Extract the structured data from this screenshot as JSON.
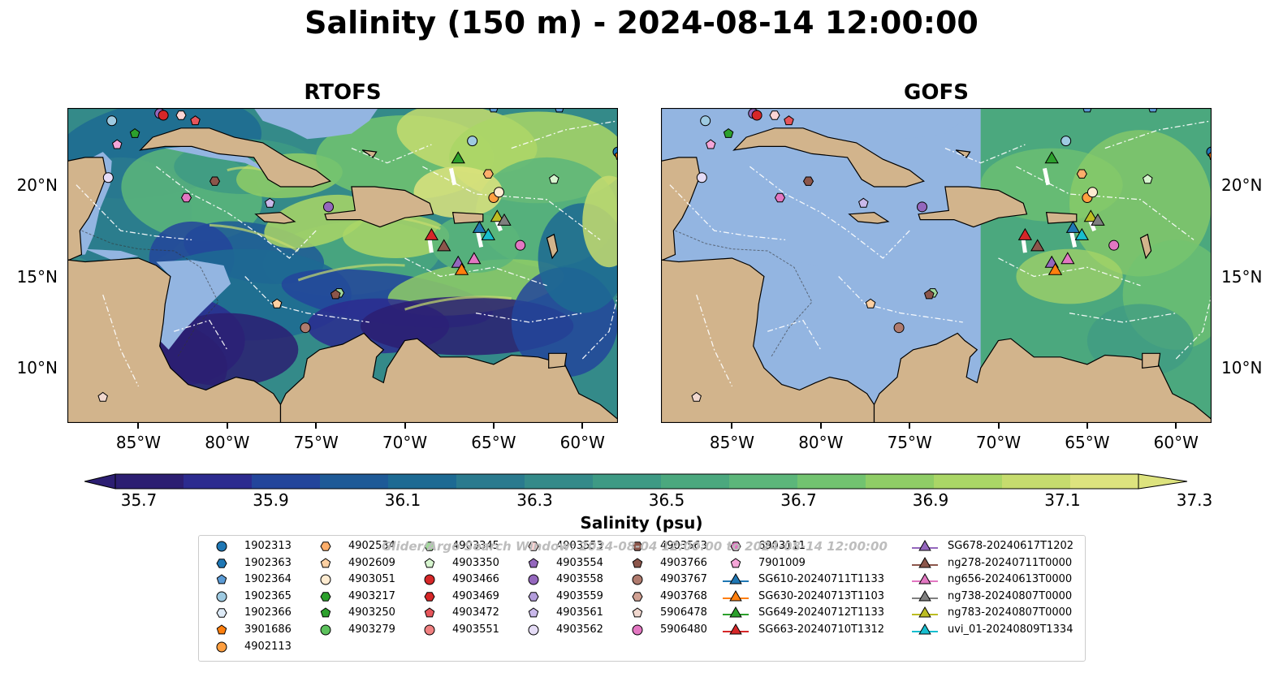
{
  "title": "Salinity (150 m) - 2024-08-14 12:00:00",
  "panels": [
    {
      "title": "RTOFS",
      "y_tick_side": "left"
    },
    {
      "title": "GOFS",
      "y_tick_side": "right"
    }
  ],
  "x_ticks": [
    "85°W",
    "80°W",
    "75°W",
    "70°W",
    "65°W",
    "60°W"
  ],
  "x_tick_values": [
    -85,
    -80,
    -75,
    -70,
    -65,
    -60
  ],
  "y_ticks": [
    "20°N",
    "15°N",
    "10°N"
  ],
  "y_tick_values": [
    20,
    15,
    10
  ],
  "extent": {
    "lon": [
      -89,
      -58
    ],
    "lat": [
      7,
      24.2
    ]
  },
  "colorbar": {
    "label": "Salinity (psu)",
    "ticks": [
      "35.7",
      "35.9",
      "36.1",
      "36.3",
      "36.5",
      "36.7",
      "36.9",
      "37.1",
      "37.3"
    ],
    "min": 35.7,
    "max": 37.3,
    "colors": [
      "#2c1e72",
      "#2c2b8f",
      "#23459b",
      "#1e5a97",
      "#1d6a93",
      "#2a7a8e",
      "#348a89",
      "#3e9a84",
      "#4ba87e",
      "#5cb67a",
      "#72c370",
      "#8fcd66",
      "#aad666",
      "#c6dc6e",
      "#dde37e"
    ]
  },
  "colors": {
    "land": "#d2b48c",
    "shelf": "#93b5e1",
    "watermark": "#bdbdbd"
  },
  "watermark": "Glider/Argo Search Window: 2024-08-04 12:00:00 to 2024-08-14 12:00:00",
  "legend": [
    {
      "label": "1902313",
      "marker": "circle",
      "color": "#1f77b4"
    },
    {
      "label": "1902363",
      "marker": "hexagon",
      "color": "#1f77b4"
    },
    {
      "label": "1902364",
      "marker": "pentagon",
      "color": "#5b9bd5"
    },
    {
      "label": "1902365",
      "marker": "circle",
      "color": "#9ecae1"
    },
    {
      "label": "1902366",
      "marker": "hexagon",
      "color": "#deebf7"
    },
    {
      "label": "3901686",
      "marker": "pentagon",
      "color": "#ff7f0e"
    },
    {
      "label": "4902113",
      "marker": "circle",
      "color": "#ff9f40"
    },
    {
      "label": "4902534",
      "marker": "hexagon",
      "color": "#fdae6b"
    },
    {
      "label": "4902609",
      "marker": "pentagon",
      "color": "#fdd0a2"
    },
    {
      "label": "4903051",
      "marker": "circle",
      "color": "#feebd0"
    },
    {
      "label": "4903217",
      "marker": "hexagon",
      "color": "#2ca02c"
    },
    {
      "label": "4903250",
      "marker": "pentagon",
      "color": "#2ca02c"
    },
    {
      "label": "4903279",
      "marker": "circle",
      "color": "#5cc15c"
    },
    {
      "label": "4903345",
      "marker": "hexagon",
      "color": "#a1d99b"
    },
    {
      "label": "4903350",
      "marker": "pentagon",
      "color": "#d7f5cf"
    },
    {
      "label": "4903466",
      "marker": "circle",
      "color": "#d62728"
    },
    {
      "label": "4903469",
      "marker": "hexagon",
      "color": "#d62728"
    },
    {
      "label": "4903472",
      "marker": "pentagon",
      "color": "#e6555a"
    },
    {
      "label": "4903551",
      "marker": "circle",
      "color": "#f08080"
    },
    {
      "label": "4903553",
      "marker": "hexagon",
      "color": "#fcd5d5"
    },
    {
      "label": "4903554",
      "marker": "pentagon",
      "color": "#9467bd"
    },
    {
      "label": "4903558",
      "marker": "circle",
      "color": "#9467bd"
    },
    {
      "label": "4903559",
      "marker": "hexagon",
      "color": "#b39ddb"
    },
    {
      "label": "4903561",
      "marker": "pentagon",
      "color": "#c9b8ea"
    },
    {
      "label": "4903562",
      "marker": "circle",
      "color": "#e5dcf6"
    },
    {
      "label": "4903563",
      "marker": "hexagon",
      "color": "#8c564b"
    },
    {
      "label": "4903766",
      "marker": "pentagon",
      "color": "#8c564b"
    },
    {
      "label": "4903767",
      "marker": "circle",
      "color": "#b07b6e"
    },
    {
      "label": "4903768",
      "marker": "hexagon",
      "color": "#d1a193"
    },
    {
      "label": "5906478",
      "marker": "pentagon",
      "color": "#f1d8cf"
    },
    {
      "label": "5906480",
      "marker": "circle",
      "color": "#e377c2"
    },
    {
      "label": "6903111",
      "marker": "hexagon",
      "color": "#e377c2"
    },
    {
      "label": "7901009",
      "marker": "pentagon",
      "color": "#f5a6d8"
    },
    {
      "label": "SG610-20240711T1133",
      "marker": "triangle",
      "color": "#1f77b4"
    },
    {
      "label": "SG630-20240713T1103",
      "marker": "triangle",
      "color": "#ff7f0e"
    },
    {
      "label": "SG649-20240712T1133",
      "marker": "triangle",
      "color": "#2ca02c"
    },
    {
      "label": "SG663-20240710T1312",
      "marker": "triangle",
      "color": "#d62728"
    },
    {
      "label": "SG678-20240617T1202",
      "marker": "triangle",
      "color": "#9467bd"
    },
    {
      "label": "ng278-20240711T0000",
      "marker": "triangle",
      "color": "#8c564b"
    },
    {
      "label": "ng656-20240613T0000",
      "marker": "triangle",
      "color": "#e377c2"
    },
    {
      "label": "ng738-20240807T0000",
      "marker": "triangle",
      "color": "#7f7f7f"
    },
    {
      "label": "ng783-20240807T0000",
      "marker": "triangle",
      "color": "#bcbd22"
    },
    {
      "label": "uvi_01-20240809T1334",
      "marker": "triangle",
      "color": "#17becf"
    }
  ],
  "floats": [
    {
      "lon": -86.5,
      "lat": 23.5,
      "id": "1902365"
    },
    {
      "lon": -86.2,
      "lat": 22.2,
      "id": "7901009"
    },
    {
      "lon": -85.2,
      "lat": 22.8,
      "id": "4903250"
    },
    {
      "lon": -83.8,
      "lat": 23.9,
      "id": "4903558"
    },
    {
      "lon": -83.6,
      "lat": 23.8,
      "id": "4903466"
    },
    {
      "lon": -82.6,
      "lat": 23.8,
      "id": "4903553"
    },
    {
      "lon": -81.8,
      "lat": 23.5,
      "id": "4903472"
    },
    {
      "lon": -86.7,
      "lat": 20.4,
      "id": "4903562"
    },
    {
      "lon": -82.3,
      "lat": 19.3,
      "id": "6903111"
    },
    {
      "lon": -80.7,
      "lat": 20.2,
      "id": "4903563"
    },
    {
      "lon": -77.6,
      "lat": 19.0,
      "id": "4903561"
    },
    {
      "lon": -74.3,
      "lat": 18.8,
      "id": "4903558"
    },
    {
      "lon": -66.2,
      "lat": 22.4,
      "id": "1902365"
    },
    {
      "lon": -65.3,
      "lat": 20.6,
      "id": "4902534"
    },
    {
      "lon": -65.0,
      "lat": 19.3,
      "id": "4902113"
    },
    {
      "lon": -64.7,
      "lat": 19.6,
      "id": "4903051"
    },
    {
      "lon": -61.6,
      "lat": 20.3,
      "id": "4903350"
    },
    {
      "lon": -63.5,
      "lat": 16.7,
      "id": "5906480"
    },
    {
      "lon": -73.7,
      "lat": 14.1,
      "id": "4903345"
    },
    {
      "lon": -73.9,
      "lat": 14.0,
      "id": "4903766"
    },
    {
      "lon": -77.2,
      "lat": 13.5,
      "id": "4902609"
    },
    {
      "lon": -75.6,
      "lat": 12.2,
      "id": "4903767"
    },
    {
      "lon": -87.0,
      "lat": 8.4,
      "id": "5906478"
    },
    {
      "lon": -65.0,
      "lat": 24.2,
      "id": "1902364"
    },
    {
      "lon": -61.3,
      "lat": 24.2,
      "id": "1902364"
    },
    {
      "lon": -58.0,
      "lat": 21.8,
      "id": "1902313"
    },
    {
      "lon": -57.9,
      "lat": 21.6,
      "id": "3901686"
    }
  ],
  "gliders": [
    {
      "lon": -67.0,
      "lat": 21.4,
      "id": "SG649"
    },
    {
      "lon": -68.5,
      "lat": 17.2,
      "id": "SG663"
    },
    {
      "lon": -67.8,
      "lat": 16.6,
      "id": "ng278"
    },
    {
      "lon": -67.0,
      "lat": 15.7,
      "id": "SG678"
    },
    {
      "lon": -66.8,
      "lat": 15.3,
      "id": "SG630"
    },
    {
      "lon": -66.1,
      "lat": 15.9,
      "id": "ng656"
    },
    {
      "lon": -65.8,
      "lat": 17.6,
      "id": "SG610"
    },
    {
      "lon": -65.3,
      "lat": 17.2,
      "id": "uvi_01"
    },
    {
      "lon": -64.8,
      "lat": 18.2,
      "id": "ng783"
    },
    {
      "lon": -64.4,
      "lat": 18.0,
      "id": "ng738"
    }
  ]
}
